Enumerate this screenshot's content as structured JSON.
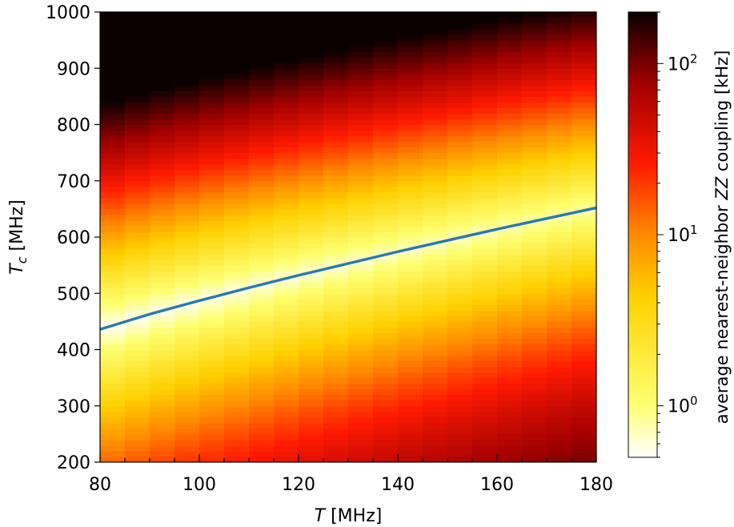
{
  "chart_data": {
    "type": "heatmap",
    "title": "",
    "xlabel_parts": [
      "T",
      " [MHz]"
    ],
    "ylabel_parts": [
      "T",
      "c",
      " [MHz]"
    ],
    "xlim": [
      80,
      180
    ],
    "ylim": [
      200,
      1000
    ],
    "x_ticks": [
      80,
      100,
      120,
      140,
      160,
      180
    ],
    "y_ticks": [
      200,
      300,
      400,
      500,
      600,
      700,
      800,
      900,
      1000
    ],
    "x_step": 5,
    "colormap": "hot_r",
    "colorbar": {
      "label_parts": [
        "average nearest-neighbor ",
        "ZZ",
        " coupling [kHz]"
      ],
      "scale": "log",
      "range": [
        0.5,
        200
      ],
      "ticks": [
        {
          "base": "10",
          "exp": "0",
          "value": 1
        },
        {
          "base": "10",
          "exp": "1",
          "value": 10
        },
        {
          "base": "10",
          "exp": "2",
          "value": 100
        }
      ]
    },
    "series": [
      {
        "type": "line",
        "color": "#2878b5",
        "x": [
          80,
          90,
          100,
          110,
          120,
          130,
          140,
          150,
          160,
          170,
          180
        ],
        "y": [
          436,
          463,
          487,
          510,
          532,
          553,
          574,
          594,
          614,
          633,
          652
        ]
      }
    ]
  }
}
